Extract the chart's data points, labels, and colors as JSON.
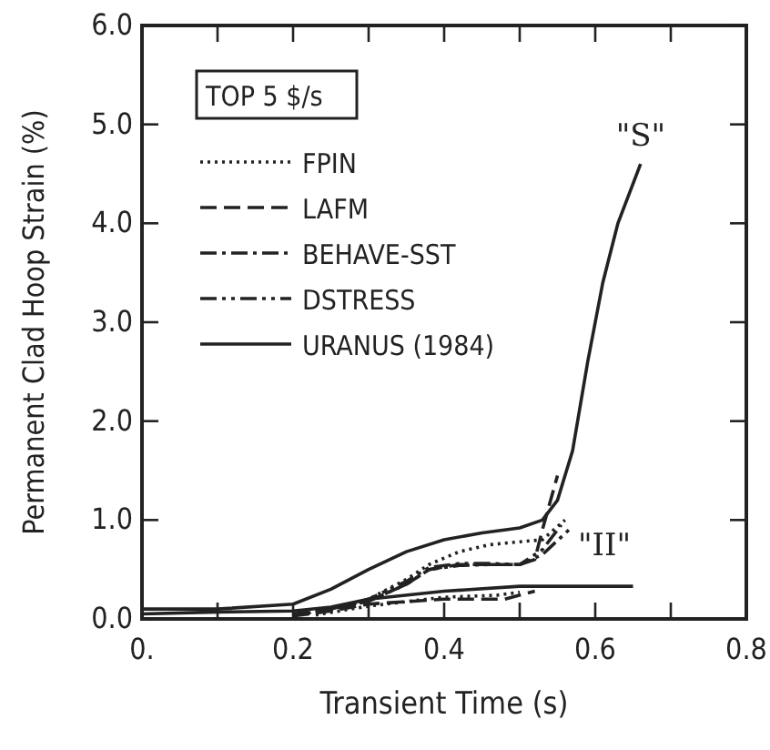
{
  "chart_data": {
    "type": "line",
    "xlabel": "Transient Time (s)",
    "ylabel": "Permanent Clad Hoop Strain (%)",
    "legend_title": "TOP 5 $/s",
    "legend": "top left",
    "xlim": [
      0,
      0.8
    ],
    "ylim": [
      0,
      6
    ],
    "xticks": [
      {
        "value": 0,
        "label": "0."
      },
      {
        "value": 0.1,
        "label": null
      },
      0.2,
      {
        "value": 0.3,
        "label": null
      },
      0.4,
      {
        "value": 0.5,
        "label": null
      },
      0.6,
      {
        "value": 0.7,
        "label": null
      },
      0.8
    ],
    "yticks": [
      {
        "value": 0,
        "label": "0.0"
      },
      {
        "value": 1,
        "label": "1.0"
      },
      {
        "value": 2,
        "label": "2.0"
      },
      {
        "value": 3,
        "label": "3.0"
      },
      {
        "value": 4,
        "label": "4.0"
      },
      {
        "value": 5,
        "label": "5.0"
      },
      {
        "value": 6,
        "label": "6.0"
      }
    ],
    "series": [
      {
        "name": "FPIN",
        "color": "#222222",
        "line_style": "dotted",
        "x": [
          0.22,
          0.25,
          0.3,
          0.35,
          0.38,
          0.42,
          0.46,
          0.5,
          0.53,
          0.56
        ],
        "values": [
          0.06,
          0.1,
          0.2,
          0.4,
          0.55,
          0.68,
          0.75,
          0.78,
          0.8,
          1.0
        ]
      },
      {
        "name": "LAFM",
        "color": "#222222",
        "line_style": "dashed",
        "x": [
          0.2,
          0.25,
          0.3,
          0.35,
          0.38,
          0.42,
          0.46,
          0.5,
          0.52,
          0.53,
          0.55
        ],
        "values": [
          0.05,
          0.1,
          0.18,
          0.35,
          0.5,
          0.55,
          0.55,
          0.55,
          0.6,
          0.9,
          1.45
        ]
      },
      {
        "name": "BEHAVE-SST",
        "color": "#222222",
        "line_style": "dashdot",
        "x": [
          0.26,
          0.3,
          0.35,
          0.38,
          0.42,
          0.46,
          0.5,
          0.53,
          0.565
        ],
        "values": [
          0.11,
          0.18,
          0.35,
          0.5,
          0.54,
          0.55,
          0.55,
          0.65,
          0.9
        ]
      },
      {
        "name": "DSTRESS",
        "color": "#222222",
        "line_style": "dashdotdot",
        "x": [
          0.24,
          0.3,
          0.35,
          0.38,
          0.42,
          0.46,
          0.5,
          0.53,
          0.555
        ],
        "values": [
          0.08,
          0.2,
          0.38,
          0.52,
          0.56,
          0.56,
          0.55,
          0.7,
          0.95
        ]
      },
      {
        "name": "URANUS (1984)",
        "color": "#222222",
        "line_style": "solid",
        "x": [
          0,
          0.1,
          0.2,
          0.25,
          0.3,
          0.35,
          0.4,
          0.45,
          0.5,
          0.53,
          0.55,
          0.57,
          0.59,
          0.61,
          0.63,
          0.66
        ],
        "values": [
          0.1,
          0.1,
          0.15,
          0.3,
          0.5,
          0.68,
          0.8,
          0.87,
          0.92,
          1.0,
          1.2,
          1.7,
          2.6,
          3.4,
          4.0,
          4.6
        ]
      },
      {
        "color": "#222222",
        "line_style": "solid",
        "x": [
          0,
          0.1,
          0.2,
          0.25,
          0.3,
          0.4,
          0.5,
          0.55,
          0.65
        ],
        "values": [
          0.05,
          0.07,
          0.08,
          0.12,
          0.2,
          0.28,
          0.33,
          0.33,
          0.33
        ]
      },
      {
        "color": "#222222",
        "line_style": "dashed",
        "x": [
          0.2,
          0.25,
          0.3,
          0.4,
          0.48,
          0.52
        ],
        "values": [
          0.03,
          0.08,
          0.15,
          0.2,
          0.2,
          0.28
        ]
      },
      {
        "color": "#222222",
        "line_style": "dotted",
        "x": [
          0.23,
          0.3,
          0.4,
          0.47,
          0.5
        ],
        "values": [
          0.04,
          0.13,
          0.22,
          0.24,
          0.27
        ]
      }
    ],
    "annotations": [
      "\"S\"",
      "\"II\""
    ]
  }
}
